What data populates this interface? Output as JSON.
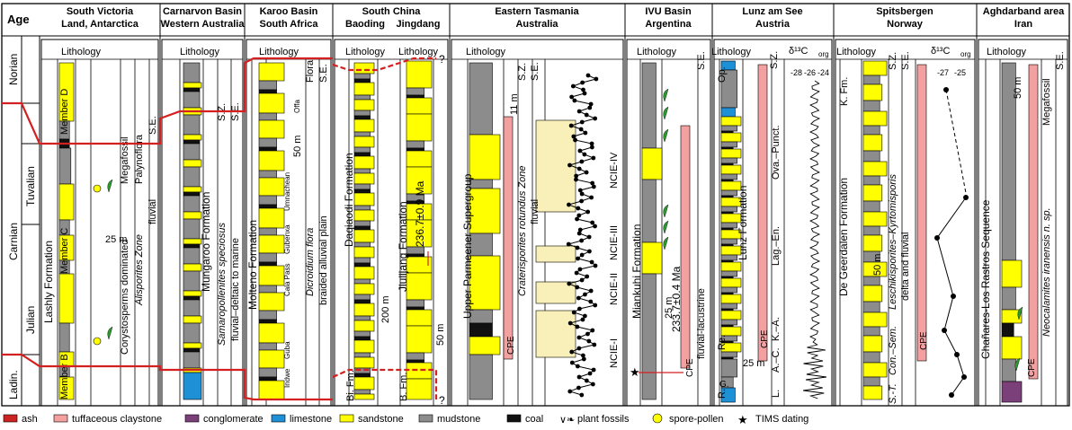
{
  "age_header": "Age",
  "ages": {
    "norian": "Norian",
    "carnian": "Carnian",
    "tuvalian": "Tuvalian",
    "julian": "Julian",
    "ladin": "Ladin."
  },
  "lithology_word": "Lithology",
  "sz_label": "S.Z.",
  "se_label": "S.E.",
  "scale_labels": {
    "m11": "11 m",
    "m25": "25 m",
    "m50": "50 m",
    "m200": "200 m"
  },
  "sections": {
    "antarctica": {
      "title": [
        "South Victoria",
        "Land, Antarctica"
      ],
      "formation": "Lashly Formation",
      "member_d": "Member D",
      "member_c": "Member C",
      "member_b": "Member B",
      "megafossil": "Megafossil",
      "palynoflora": "Palynoflora",
      "se": "S.E.",
      "corystosperms": "Corystosperms dominated",
      "alisporites": "Alisporites Zone",
      "fluvial": "fluvial"
    },
    "carnarvon": {
      "title": [
        "Carnarvon Basin",
        "Western Australia"
      ],
      "formation": "Mungaroo Formation",
      "zone": "Samaropollenites speciosus",
      "env": "fluvial–deltaic to marine"
    },
    "karoo": {
      "title": [
        "Karoo Basin",
        "South Africa"
      ],
      "formation": "Molteno Formation",
      "flora": "Flora",
      "dicroidium": "Dicroidium flora",
      "env": "braided alluvial plain",
      "members": [
        "Offa",
        "Umnachean",
        "Gubenxa",
        "Cala Pass",
        "Guba",
        "Indwe"
      ]
    },
    "china": {
      "title": [
        "South China"
      ],
      "sub": [
        "Baoding",
        "Jingdang"
      ],
      "daqiaodi": "Daqiaodi Formation",
      "jiulijang": "Jiulijang Formation",
      "bi_fm": "Bi. Fm.",
      "b_fm": "B. Fm.",
      "age": "236.7±0.9 Ma",
      "q": "?"
    },
    "tasmania": {
      "title": [
        "Eastern Tasmania",
        "Australia"
      ],
      "formation": "Upper Parmeener Supergroup",
      "zone": "Craterisporites rotundus Zone",
      "env": "fluvial",
      "ncie": [
        "NCIE-IV",
        "NCIE-III",
        "NCIE-II",
        "NCIE-I"
      ],
      "cpe": "CPE"
    },
    "ivu": {
      "title": [
        "IVU Basin",
        "Argentina"
      ],
      "formation": "Miankuhi Formation",
      "env": "fluvial-lacustrine",
      "age": "233.7±0.4 Ma",
      "cpe": "CPE"
    },
    "lunz": {
      "title": [
        "Lunz am See",
        "Austria"
      ],
      "formation": "Lunz Formation",
      "op": "Op.",
      "re": "Re.",
      "r": "R.",
      "g": "G.",
      "zones": [
        "Ova.–Punct.",
        "Lag.–En.",
        "A.–C.",
        "K.–A.",
        "L."
      ],
      "d13c": "δ¹³C",
      "corg": "org",
      "ticks": [
        "-28",
        "-26",
        "-24"
      ],
      "cpe": "CPE"
    },
    "spitsbergen": {
      "title": [
        "Spitsbergen",
        "Norway"
      ],
      "k_fm": "K. Fm.",
      "formation": "De Geerdalen Formation",
      "zone": "Leschikisporites–Kyrtomisporis",
      "zone2": "Con.–Sem.",
      "s_t": "S.-T.",
      "env": "delta and fluvial",
      "d13c": "δ¹³C",
      "corg": "org",
      "ticks": [
        "-27",
        "-25"
      ],
      "cpe": "CPE"
    },
    "aghdarband": {
      "title": [
        "Aghdarband area",
        "Iran"
      ],
      "sequence": "Chañares-Los Rastros Sequence",
      "megafossil": "Megafossil",
      "neocalamites": "Neocalamites iranensis n. sp.",
      "cpe": "CPE"
    }
  },
  "legend": [
    {
      "label": "ash",
      "kind": "ash"
    },
    {
      "label": "tuffaceous claystone",
      "kind": "tuff"
    },
    {
      "label": "conglomerate",
      "kind": "conglomerate"
    },
    {
      "label": "limestone",
      "kind": "limestone"
    },
    {
      "label": "sandstone",
      "kind": "sandstone"
    },
    {
      "label": "mudstone",
      "kind": "mudstone"
    },
    {
      "label": "coal",
      "kind": "coal"
    },
    {
      "label": "plant fossils",
      "kind": "plant"
    },
    {
      "label": "spore-pollen",
      "kind": "spore"
    },
    {
      "label": "TIMS dating",
      "kind": "tims"
    }
  ],
  "colors": {
    "sandstone": "#ffff00",
    "mudstone": "#8c8c8c",
    "coal": "#111111",
    "limestone": "#1e90d6",
    "conglomerate": "#7b3f7a",
    "tuff": "#f2a0a0",
    "ash": "#cc2222",
    "plant": "#2e9b2e",
    "red": "#d42020"
  }
}
